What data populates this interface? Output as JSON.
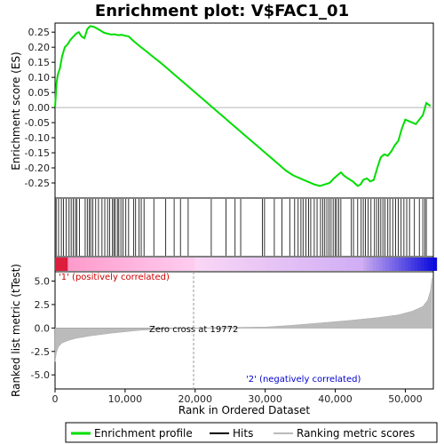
{
  "chart_data": {
    "type": "line",
    "title": "Enrichment plot: V$FAC1_01",
    "xlabel": "Rank in Ordered Dataset",
    "ylabel_top": "Enrichment score (ES)",
    "ylabel_bottom": "Ranked list metric (tTest)",
    "x_ticks": [
      "0",
      "10,000",
      "20,000",
      "30,000",
      "40,000",
      "50,000"
    ],
    "x_tick_values": [
      0,
      10000,
      20000,
      30000,
      40000,
      50000
    ],
    "xlim": [
      0,
      54000
    ],
    "es_ylim": [
      -0.3,
      0.28
    ],
    "es_y_ticks": [
      "0.25",
      "0.20",
      "0.15",
      "0.10",
      "0.05",
      "0.00",
      "-0.05",
      "-0.10",
      "-0.15",
      "-0.20",
      "-0.25"
    ],
    "es_y_tick_values": [
      0.25,
      0.2,
      0.15,
      0.1,
      0.05,
      0.0,
      -0.05,
      -0.1,
      -0.15,
      -0.2,
      -0.25
    ],
    "metric_ylim": [
      -6.5,
      6.0
    ],
    "metric_y_ticks": [
      "5.0",
      "2.5",
      "0.0",
      "-2.5",
      "-5.0"
    ],
    "metric_y_tick_values": [
      5.0,
      2.5,
      0.0,
      -2.5,
      -5.0
    ],
    "zero_cross_label": "Zero cross at 19772",
    "zero_cross": 19772,
    "pos_label": "'1' (positively correlated)",
    "neg_label": "'2' (negatively correlated)",
    "legend": [
      {
        "label": "Enrichment profile",
        "color": "#00dd00"
      },
      {
        "label": "Hits",
        "color": "#000000"
      },
      {
        "label": "Ranking metric scores",
        "color": "#bbbbbb"
      }
    ],
    "enrichment_profile": {
      "x": [
        0,
        200,
        400,
        700,
        1000,
        1400,
        1800,
        2200,
        2600,
        3000,
        3400,
        3800,
        4200,
        4600,
        5000,
        5500,
        6000,
        6500,
        7000,
        7500,
        8000,
        8500,
        9000,
        9500,
        10000,
        10500,
        11000,
        12000,
        13000,
        14000,
        15000,
        16000,
        17000,
        18000,
        19000,
        20000,
        21000,
        22000,
        23000,
        24000,
        25000,
        26000,
        27000,
        28000,
        29000,
        30000,
        31000,
        32000,
        33000,
        34000,
        35000,
        36000,
        37000,
        37800,
        38500,
        39200,
        39800,
        40300,
        40800,
        41200,
        41800,
        42500,
        43200,
        43600,
        44000,
        44500,
        45000,
        45500,
        46000,
        46500,
        47000,
        47500,
        48000,
        48500,
        49000,
        49500,
        50000,
        50500,
        51000,
        51500,
        52000,
        52500,
        53000,
        53600
      ],
      "y": [
        0.0,
        0.08,
        0.11,
        0.13,
        0.17,
        0.2,
        0.21,
        0.225,
        0.235,
        0.245,
        0.25,
        0.235,
        0.23,
        0.26,
        0.27,
        0.268,
        0.262,
        0.255,
        0.248,
        0.245,
        0.242,
        0.243,
        0.24,
        0.241,
        0.238,
        0.236,
        0.225,
        0.205,
        0.187,
        0.168,
        0.15,
        0.13,
        0.11,
        0.09,
        0.07,
        0.05,
        0.03,
        0.01,
        -0.01,
        -0.03,
        -0.05,
        -0.07,
        -0.09,
        -0.11,
        -0.13,
        -0.15,
        -0.17,
        -0.19,
        -0.21,
        -0.225,
        -0.235,
        -0.245,
        -0.255,
        -0.26,
        -0.255,
        -0.25,
        -0.235,
        -0.225,
        -0.215,
        -0.225,
        -0.235,
        -0.245,
        -0.26,
        -0.255,
        -0.24,
        -0.235,
        -0.245,
        -0.24,
        -0.2,
        -0.165,
        -0.155,
        -0.16,
        -0.145,
        -0.125,
        -0.11,
        -0.07,
        -0.04,
        -0.045,
        -0.05,
        -0.055,
        -0.04,
        -0.025,
        0.015,
        0.005
      ]
    },
    "hits": [
      150,
      500,
      900,
      1200,
      1600,
      2000,
      2300,
      2600,
      2900,
      3100,
      3500,
      4300,
      4600,
      4900,
      5100,
      5400,
      5800,
      6200,
      6700,
      7100,
      7500,
      7800,
      8200,
      8400,
      8600,
      8900,
      9100,
      9400,
      9700,
      10100,
      10500,
      11200,
      11500,
      12000,
      12300,
      12700,
      14100,
      15800,
      17000,
      17900,
      19000,
      22300,
      24400,
      25700,
      26500,
      29600,
      29900,
      31300,
      32400,
      33500,
      34200,
      34700,
      35100,
      35400,
      35800,
      36200,
      36500,
      37000,
      37400,
      37900,
      38200,
      38500,
      38800,
      39100,
      39400,
      39700,
      40000,
      40200,
      40500,
      40800,
      42300,
      42600,
      43200,
      43700,
      44000,
      44300,
      44700,
      45100,
      45600,
      45900,
      46200,
      46500,
      46800,
      47100,
      47500,
      47800,
      48200,
      48600,
      49000,
      49400,
      49800,
      50200,
      50600,
      51300,
      52000,
      52500,
      52800,
      53000
    ],
    "metric_curve": {
      "x": [
        0,
        200,
        500,
        1000,
        2000,
        3000,
        5000,
        8000,
        12000,
        16000,
        19772,
        24000,
        30000,
        34000,
        38000,
        42000,
        46000,
        49000,
        51000,
        52500,
        53200,
        53600,
        53800
      ],
      "y": [
        -3.6,
        -2.6,
        -2.0,
        -1.6,
        -1.3,
        -1.1,
        -0.85,
        -0.55,
        -0.25,
        -0.08,
        0.0,
        0.05,
        0.1,
        0.3,
        0.55,
        0.8,
        1.1,
        1.4,
        1.8,
        2.3,
        3.0,
        4.0,
        5.3
      ]
    }
  }
}
